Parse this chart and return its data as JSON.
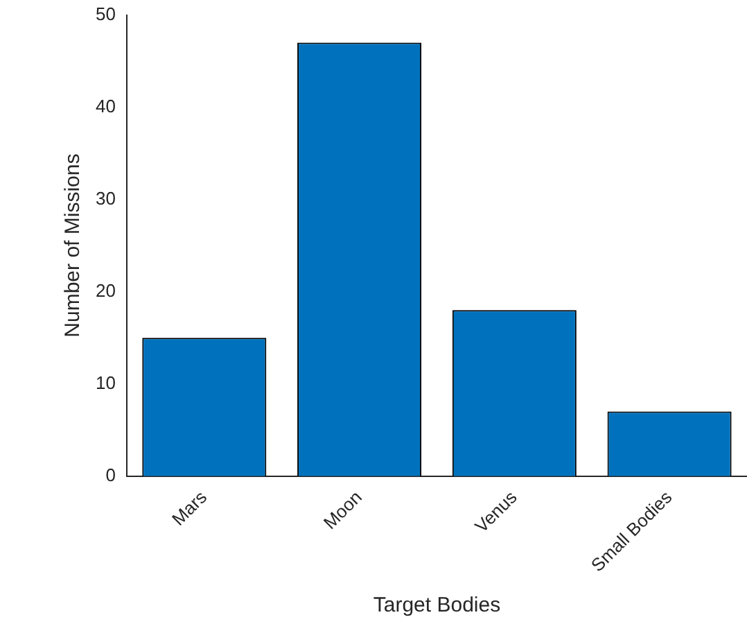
{
  "chart_data": {
    "type": "bar",
    "xlabel": "Target Bodies",
    "ylabel": "Number of Missions",
    "categories": [
      "Mars",
      "Moon",
      "Venus",
      "Small Bodies"
    ],
    "values": [
      15,
      47,
      18,
      7
    ],
    "color": "#0072bd",
    "ylim": [
      0,
      50
    ],
    "yticks": [
      0,
      10,
      20,
      30,
      40,
      50
    ],
    "grid": false,
    "legend": false
  }
}
